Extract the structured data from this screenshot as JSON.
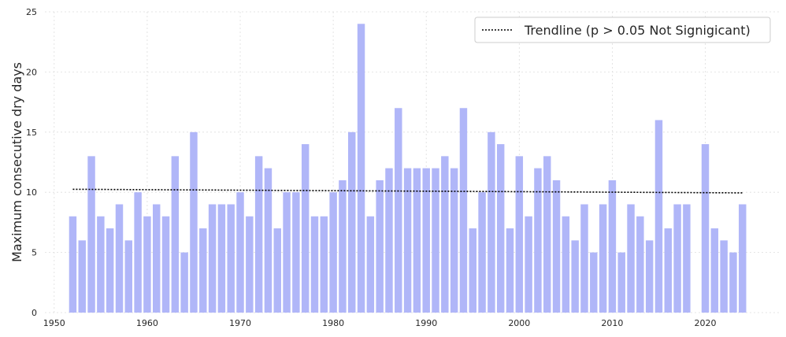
{
  "chart_data": {
    "type": "bar",
    "x": [
      1952,
      1953,
      1954,
      1955,
      1956,
      1957,
      1958,
      1959,
      1960,
      1961,
      1962,
      1963,
      1964,
      1965,
      1966,
      1967,
      1968,
      1969,
      1970,
      1971,
      1972,
      1973,
      1974,
      1975,
      1976,
      1977,
      1978,
      1979,
      1980,
      1981,
      1982,
      1983,
      1984,
      1985,
      1986,
      1987,
      1988,
      1989,
      1990,
      1991,
      1992,
      1993,
      1994,
      1995,
      1996,
      1997,
      1998,
      1999,
      2000,
      2001,
      2002,
      2003,
      2004,
      2005,
      2006,
      2007,
      2008,
      2009,
      2010,
      2011,
      2012,
      2013,
      2014,
      2015,
      2016,
      2017,
      2018,
      2019,
      2020,
      2021,
      2022,
      2023,
      2024
    ],
    "values": [
      8,
      6,
      13,
      8,
      7,
      9,
      6,
      10,
      8,
      9,
      8,
      13,
      5,
      15,
      7,
      9,
      9,
      9,
      10,
      8,
      13,
      12,
      7,
      10,
      10,
      14,
      8,
      8,
      10,
      11,
      15,
      24,
      8,
      11,
      12,
      17,
      12,
      12,
      12,
      12,
      13,
      12,
      17,
      7,
      10,
      15,
      14,
      7,
      13,
      8,
      12,
      13,
      11,
      8,
      6,
      9,
      5,
      9,
      11,
      5,
      9,
      8,
      6,
      16,
      7,
      9,
      9,
      0,
      14,
      7,
      6,
      5,
      9
    ],
    "trendline": {
      "label": "Trendline (p > 0.05 Not Signigicant)",
      "start": [
        1952,
        10.25
      ],
      "end": [
        2024,
        9.95
      ],
      "style": "dotted"
    },
    "ylabel": "Maximum consecutive dry days",
    "xlabel": "",
    "xlim": [
      1949,
      2028
    ],
    "ylim": [
      0,
      25
    ],
    "xticks": [
      1950,
      1960,
      1970,
      1980,
      1990,
      2000,
      2010,
      2020
    ],
    "yticks": [
      0,
      5,
      10,
      15,
      20,
      25
    ],
    "grid": true,
    "legend_position": "top-right",
    "bar_color": "#b0b6f8",
    "trend_color": "#000000"
  }
}
